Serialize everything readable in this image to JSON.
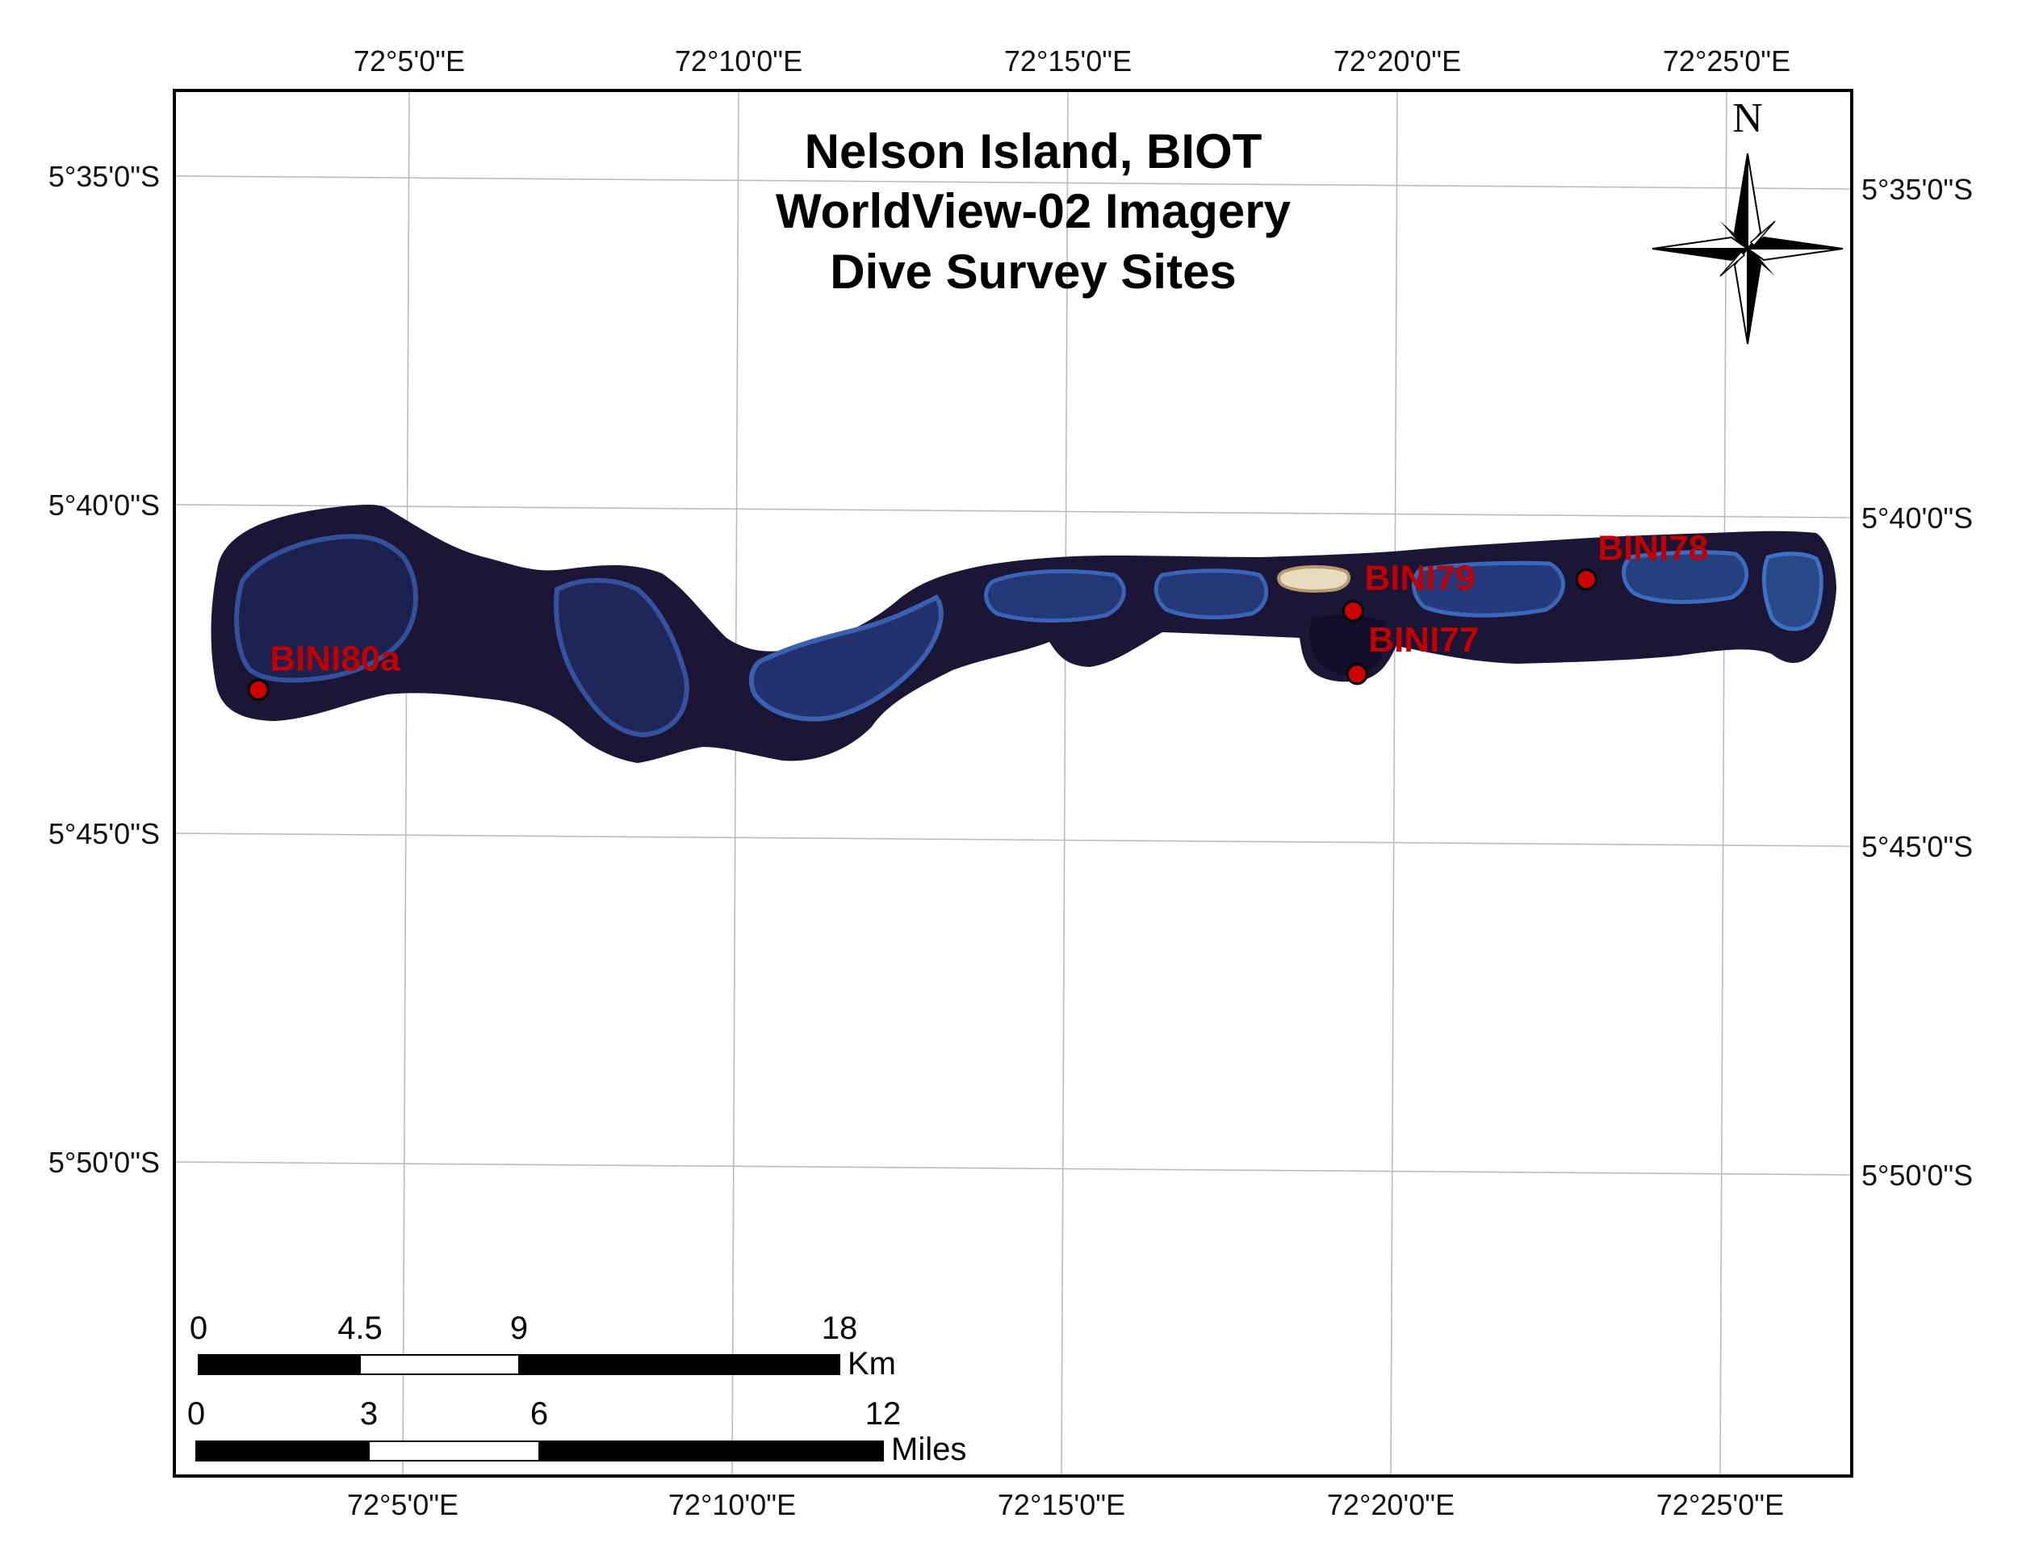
{
  "map": {
    "title_lines": [
      "Nelson Island, BIOT",
      "WorldView-02 Imagery",
      "Dive Survey Sites"
    ],
    "colors": {
      "background": "#ffffff",
      "water": "#ffffff",
      "reef_dark": "#1a1638",
      "reef_lagoon": "#2a3a78",
      "reef_rim": "#3a5aa8",
      "island_sand": "#e8dcc0",
      "site_marker": "#cc0000",
      "site_label": "#c00000",
      "graticule": "#b8b8b8"
    },
    "graticule": {
      "longitudes": [
        "72°5'0\"E",
        "72°10'0\"E",
        "72°15'0\"E",
        "72°20'0\"E",
        "72°25'0\"E"
      ],
      "latitudes": [
        "5°35'0\"S",
        "5°40'0\"S",
        "5°45'0\"S",
        "5°50'0\"S"
      ]
    },
    "sites": [
      {
        "name": "BINI80a",
        "lon": 72.046,
        "lat": -5.712
      },
      {
        "name": "BINI79",
        "lon": 72.323,
        "lat": -5.692
      },
      {
        "name": "BINI77",
        "lon": 72.324,
        "lat": -5.708
      },
      {
        "name": "BINI78",
        "lon": 72.382,
        "lat": -5.684
      }
    ],
    "north_arrow": {
      "letter": "N",
      "icon": "north-arrow-icon"
    },
    "scale_km": {
      "ticks": [
        "0",
        "4.5",
        "9",
        "18"
      ],
      "unit": "Km"
    },
    "scale_miles": {
      "ticks": [
        "0",
        "3",
        "6",
        "12"
      ],
      "unit": "Miles"
    }
  }
}
